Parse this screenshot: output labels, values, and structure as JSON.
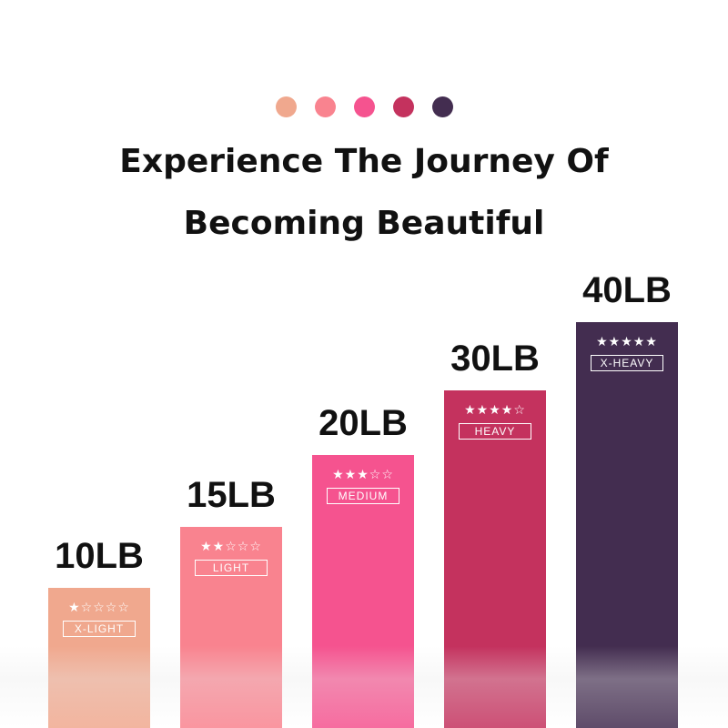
{
  "colors": [
    "#f0a88e",
    "#f9838f",
    "#f5538f",
    "#c4325e",
    "#432d50"
  ],
  "title_line1": "Experience The Journey Of",
  "title_line2": "Becoming Beautiful",
  "bands": [
    {
      "weight": "10LB",
      "stars": "★☆☆☆☆",
      "rating": 1,
      "level": "X-LIGHT",
      "color": "#f0a88e"
    },
    {
      "weight": "15LB",
      "stars": "★★☆☆☆",
      "rating": 2,
      "level": "LIGHT",
      "color": "#f9838f"
    },
    {
      "weight": "20LB",
      "stars": "★★★☆☆",
      "rating": 3,
      "level": "MEDIUM",
      "color": "#f5538f"
    },
    {
      "weight": "30LB",
      "stars": "★★★★☆",
      "rating": 4,
      "level": "HEAVY",
      "color": "#c4325e"
    },
    {
      "weight": "40LB",
      "stars": "★★★★★",
      "rating": 5,
      "level": "X-HEAVY",
      "color": "#432d50"
    }
  ]
}
